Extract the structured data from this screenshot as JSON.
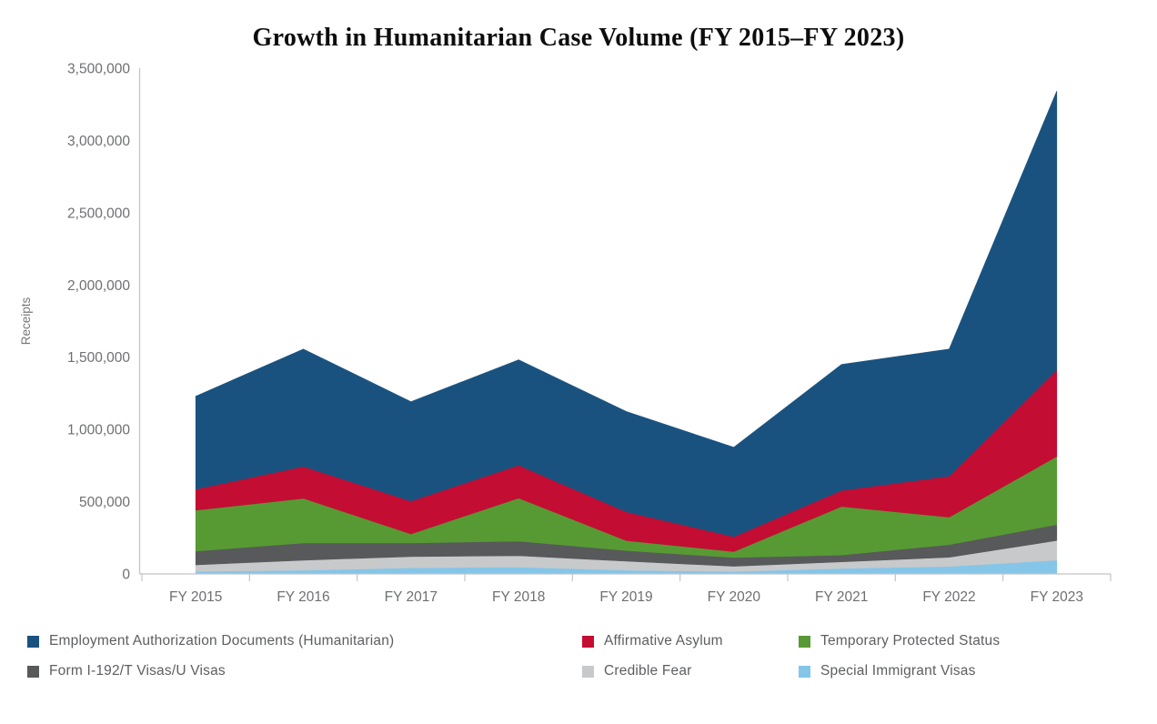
{
  "title": "Growth in Humanitarian Case Volume (FY 2015–FY 2023)",
  "chart_data": {
    "type": "area",
    "stacked": true,
    "title": "Growth in Humanitarian Case Volume (FY 2015–FY 2023)",
    "xlabel": "",
    "ylabel": "Receipts",
    "ylim": [
      0,
      3500000
    ],
    "y_tick_step": 500000,
    "y_tick_labels": [
      "0",
      "500,000",
      "1,000,000",
      "1,500,000",
      "2,000,000",
      "2,500,000",
      "3,000,000",
      "3,500,000"
    ],
    "grid": false,
    "legend_position": "bottom",
    "categories": [
      "FY 2015",
      "FY 2016",
      "FY 2017",
      "FY 2018",
      "FY 2019",
      "FY 2020",
      "FY 2021",
      "FY 2022",
      "FY 2023"
    ],
    "series": [
      {
        "name": "Special Immigrant Visas",
        "color": "#85c5e8",
        "values": [
          17000,
          25000,
          42000,
          48000,
          25000,
          17000,
          38000,
          52000,
          95000
        ]
      },
      {
        "name": "Credible Fear",
        "color": "#c7c9cb",
        "values": [
          46000,
          70000,
          78000,
          78000,
          63000,
          36000,
          46000,
          63000,
          136000
        ]
      },
      {
        "name": "Form I-192/T Visas/U Visas",
        "color": "#58595b",
        "values": [
          95000,
          119000,
          94000,
          101000,
          74000,
          60000,
          47000,
          88000,
          111000
        ]
      },
      {
        "name": "Temporary Protected Status",
        "color": "#579a34",
        "values": [
          283000,
          309000,
          63000,
          298000,
          69000,
          41000,
          336000,
          190000,
          471000
        ]
      },
      {
        "name": "Affirmative Asylum",
        "color": "#c40d33",
        "values": [
          145000,
          221000,
          227000,
          227000,
          199000,
          104000,
          111000,
          284000,
          599000
        ]
      },
      {
        "name": "Employment Authorization Documents (Humanitarian)",
        "color": "#1a527f",
        "values": [
          644000,
          812000,
          688000,
          730000,
          694000,
          618000,
          872000,
          879000,
          1930000
        ]
      }
    ],
    "stacked_totals": [
      1230000,
      1556000,
      1192000,
      1482000,
      1124000,
      876000,
      1450000,
      1556000,
      3342000
    ]
  },
  "legend": {
    "items": [
      {
        "label": "Employment Authorization Documents (Humanitarian)",
        "color": "#1a527f"
      },
      {
        "label": "Affirmative Asylum",
        "color": "#c40d33"
      },
      {
        "label": "Temporary Protected Status",
        "color": "#579a34"
      },
      {
        "label": "Form I-192/T Visas/U Visas",
        "color": "#58595b"
      },
      {
        "label": "Credible Fear",
        "color": "#c7c9cb"
      },
      {
        "label": "Special Immigrant Visas",
        "color": "#85c5e8"
      }
    ]
  },
  "axis_style": {
    "axis_line_color": "#c3c4c6",
    "tick_color": "#c3c4c6",
    "label_color": "#6e6f72",
    "ylabel_color": "#77787b"
  }
}
